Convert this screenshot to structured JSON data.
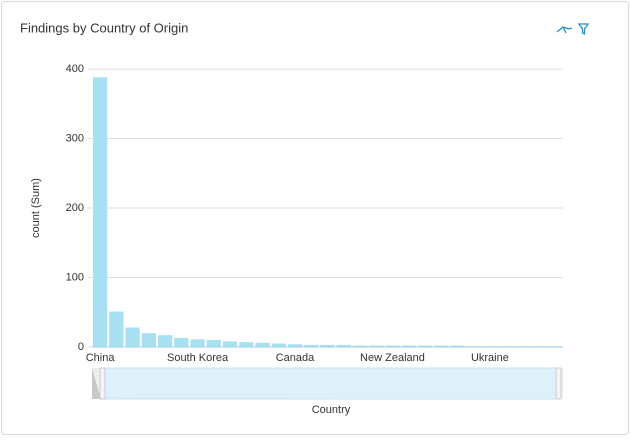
{
  "chart_data": {
    "type": "bar",
    "title": "Findings by Country of Origin",
    "x_label": "Country",
    "y_label": "count (Sum)",
    "categories": [
      "China",
      null,
      null,
      null,
      null,
      null,
      "South Korea",
      null,
      null,
      null,
      null,
      null,
      "Canada",
      null,
      null,
      null,
      null,
      null,
      "New Zealand",
      null,
      null,
      null,
      null,
      null,
      "Ukraine",
      null,
      null,
      null,
      null
    ],
    "values": [
      388,
      51,
      28,
      20,
      17,
      13,
      11,
      10,
      8,
      7,
      6,
      5,
      4,
      3,
      3,
      3,
      2,
      2,
      2,
      2,
      2,
      2,
      2,
      1,
      1,
      1,
      1,
      1,
      1
    ],
    "color": "#a6e0f2",
    "ylim": [
      0,
      400
    ],
    "yticks": [
      0,
      100,
      200,
      300,
      400
    ],
    "grid": true
  }
}
